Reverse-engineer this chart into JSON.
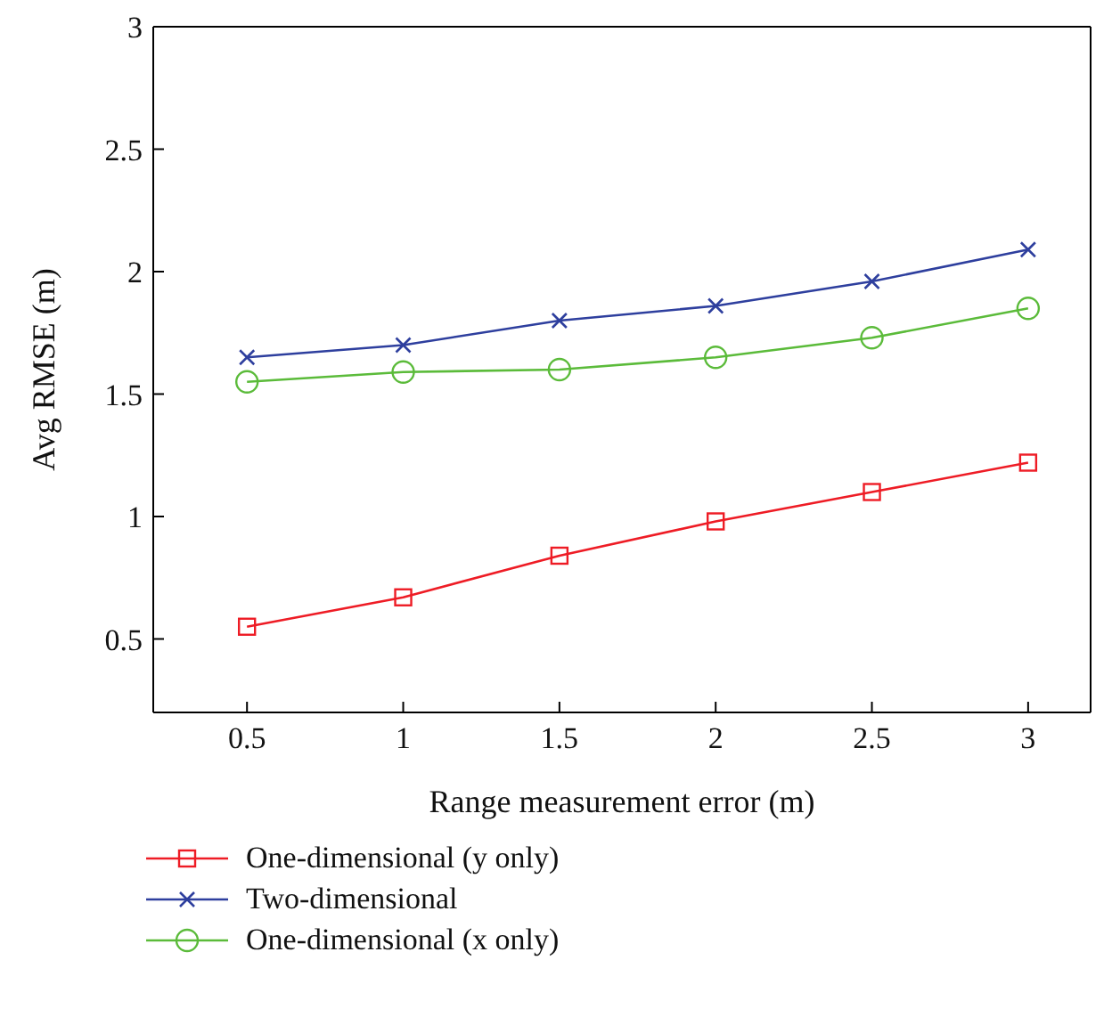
{
  "chart_data": {
    "type": "line",
    "xlabel": "Range measurement error (m)",
    "ylabel": "Avg RMSE (m)",
    "x": [
      0.5,
      1,
      1.5,
      2,
      2.5,
      3
    ],
    "series": [
      {
        "name": "One-dimensional (y only)",
        "color": "#ee1c25",
        "marker": "square",
        "values": [
          0.55,
          0.67,
          0.84,
          0.98,
          1.1,
          1.22
        ]
      },
      {
        "name": "Two-dimensional",
        "color": "#2e3f9e",
        "marker": "cross",
        "values": [
          1.65,
          1.7,
          1.8,
          1.86,
          1.96,
          2.09
        ]
      },
      {
        "name": "One-dimensional (x only)",
        "color": "#5bbb3a",
        "marker": "circle",
        "values": [
          1.55,
          1.59,
          1.6,
          1.65,
          1.73,
          1.85
        ]
      }
    ],
    "xlim": [
      0.2,
      3.2
    ],
    "xticks": [
      0.5,
      1,
      1.5,
      2,
      2.5,
      3
    ],
    "ylim": [
      0.2,
      3
    ],
    "yticks": [
      0.5,
      1,
      1.5,
      2,
      2.5,
      3
    ],
    "grid": false,
    "legend": "bottom",
    "line_style": "solid"
  }
}
